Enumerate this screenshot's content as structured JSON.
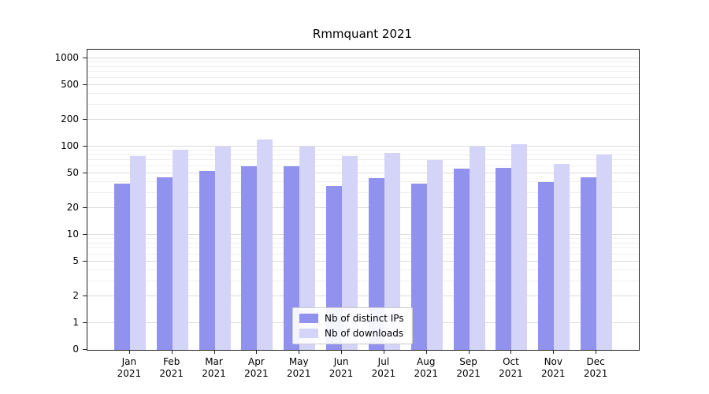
{
  "title": "Rmmquant 2021",
  "chart_data": {
    "type": "bar",
    "title": "Rmmquant 2021",
    "categories": [
      "Jan",
      "Feb",
      "Mar",
      "Apr",
      "May",
      "Jun",
      "Jul",
      "Aug",
      "Sep",
      "Oct",
      "Nov",
      "Dec"
    ],
    "category_year": "2021",
    "series": [
      {
        "name": "Nb of distinct IPs",
        "color": "#9191ee",
        "values": [
          38,
          45,
          53,
          60,
          60,
          36,
          44,
          38,
          56,
          58,
          40,
          45
        ]
      },
      {
        "name": "Nb of downloads",
        "color": "#d4d4f8",
        "values": [
          78,
          92,
          100,
          120,
          100,
          78,
          85,
          71,
          100,
          106,
          63,
          82
        ]
      }
    ],
    "yscale": "symlog",
    "yticks": [
      0,
      1,
      2,
      5,
      10,
      20,
      50,
      100,
      200,
      500,
      1000
    ],
    "ylim": [
      0,
      1300
    ],
    "xlabel": "",
    "ylabel": "",
    "grid": true,
    "legend_position": "lower center"
  }
}
